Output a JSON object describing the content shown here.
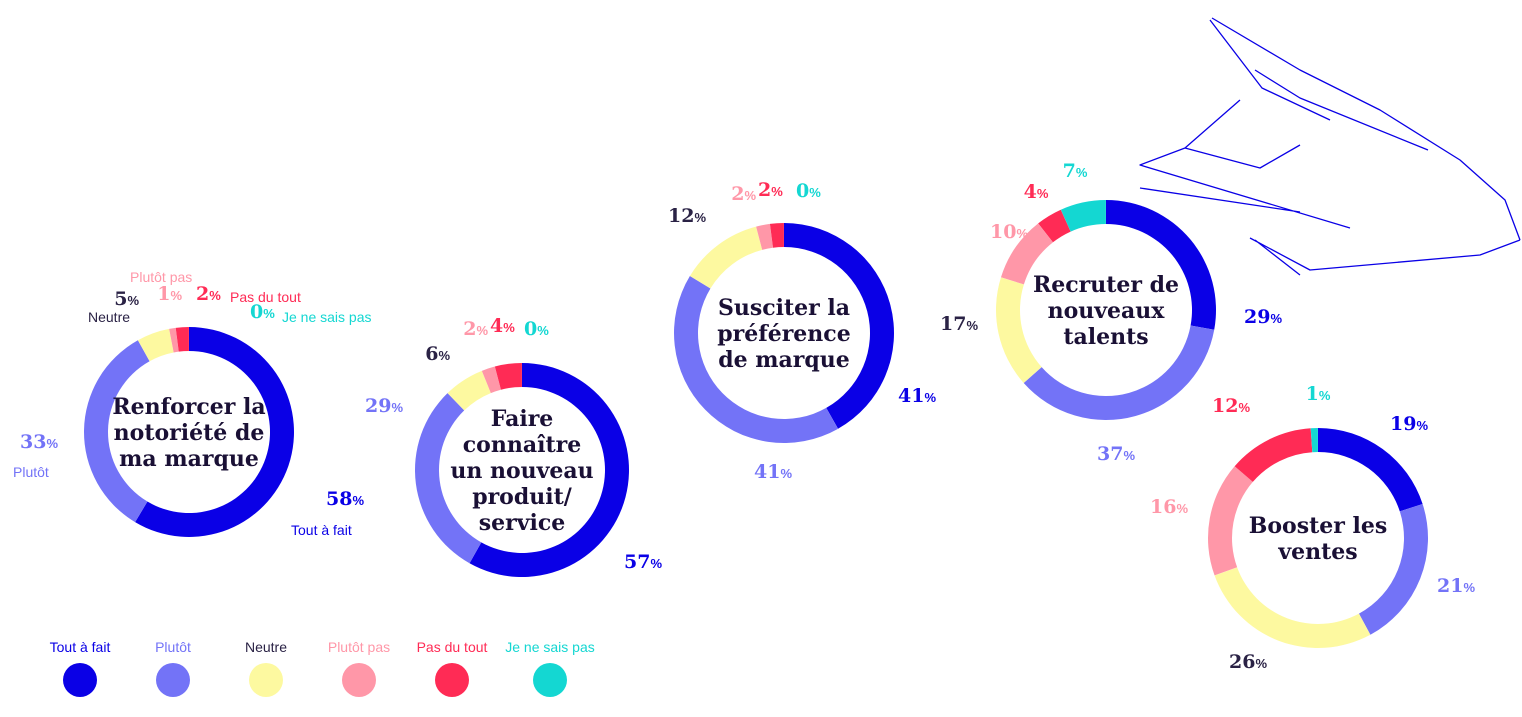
{
  "colors": {
    "tout_a_fait": "#0a00e6",
    "plutot": "#7373f7",
    "neutre": "#fdf9a0",
    "plutot_pas": "#ff97a8",
    "pas_du_tout": "#ff2b55",
    "je_ne_sais_pas": "#14d7d2",
    "title": "#1a1035",
    "neutre_text": "#2a2245"
  },
  "legend": [
    {
      "label": "Tout à fait",
      "color_key": "tout_a_fait"
    },
    {
      "label": "Plutôt",
      "color_key": "plutot"
    },
    {
      "label": "Neutre",
      "color_key": "neutre"
    },
    {
      "label": "Plutôt pas",
      "color_key": "plutot_pas"
    },
    {
      "label": "Pas du tout",
      "color_key": "pas_du_tout"
    },
    {
      "label": "Je ne sais pas",
      "color_key": "je_ne_sais_pas"
    }
  ],
  "chart_data": [
    {
      "type": "pie",
      "title": "Renforcer la notoriété de ma marque",
      "categories": [
        "Tout à fait",
        "Plutôt",
        "Neutre",
        "Plutôt pas",
        "Pas du tout",
        "Je ne sais pas"
      ],
      "values": [
        58,
        33,
        5,
        1,
        2,
        0
      ],
      "category_annotations": [
        "Tout à fait",
        "Plutôt",
        "Neutre",
        "Plutôt pas",
        "Pas du tout",
        "Je ne sais pas"
      ]
    },
    {
      "type": "pie",
      "title": "Faire connaître un nouveau produit/ service",
      "categories": [
        "Tout à fait",
        "Plutôt",
        "Neutre",
        "Plutôt pas",
        "Pas du tout",
        "Je ne sais pas"
      ],
      "values": [
        57,
        29,
        6,
        2,
        4,
        0
      ]
    },
    {
      "type": "pie",
      "title": "Susciter la préférence de marque",
      "categories": [
        "Tout à fait",
        "Plutôt",
        "Neutre",
        "Plutôt pas",
        "Pas du tout",
        "Je ne sais pas"
      ],
      "values": [
        41,
        41,
        12,
        2,
        2,
        0
      ]
    },
    {
      "type": "pie",
      "title": "Recruter de nouveaux talents",
      "categories": [
        "Tout à fait",
        "Plutôt",
        "Neutre",
        "Plutôt pas",
        "Pas du tout",
        "Je ne sais pas"
      ],
      "values": [
        29,
        37,
        17,
        10,
        4,
        7
      ]
    },
    {
      "type": "pie",
      "title": "Booster les ventes",
      "categories": [
        "Tout à fait",
        "Plutôt",
        "Neutre",
        "Plutôt pas",
        "Pas du tout",
        "Je ne sais pas"
      ],
      "values": [
        19,
        21,
        26,
        16,
        12,
        1
      ]
    }
  ]
}
